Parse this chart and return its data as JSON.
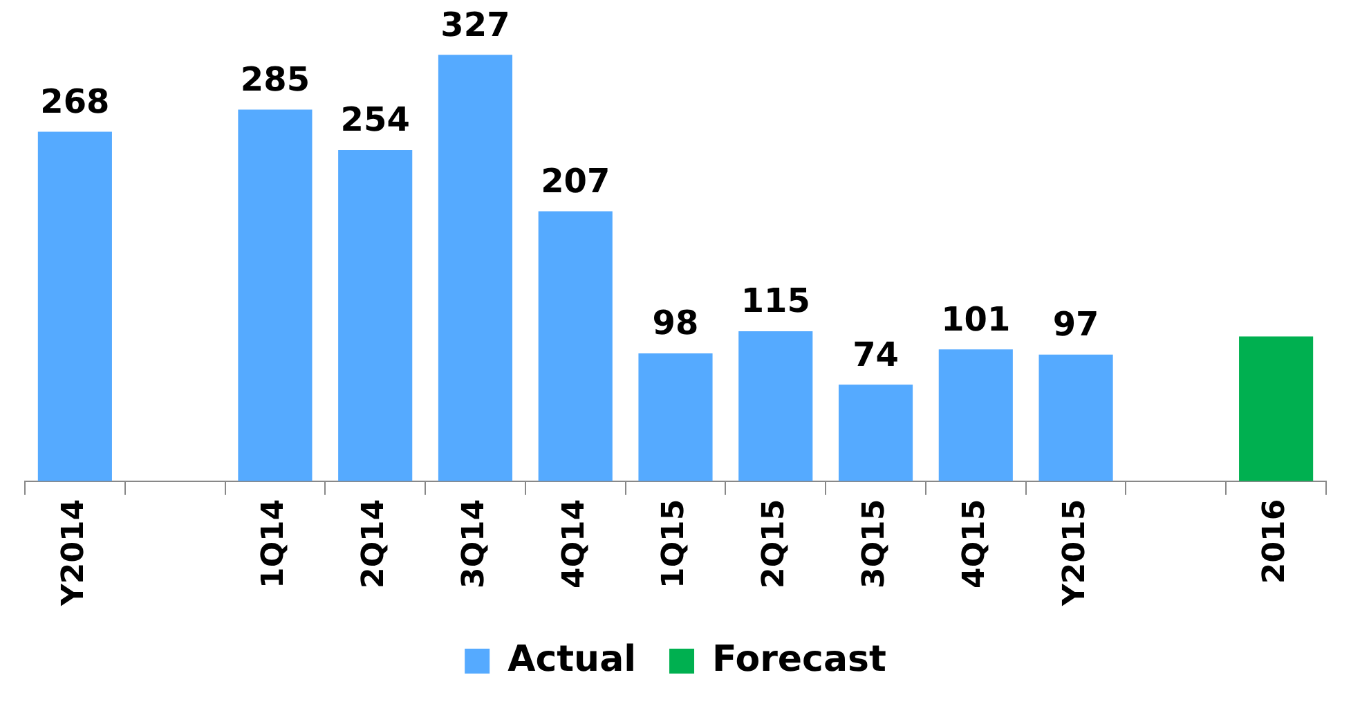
{
  "chart_data": {
    "type": "bar",
    "categories": [
      "Y2014",
      null,
      "1Q14",
      "2Q14",
      "3Q14",
      "4Q14",
      "1Q15",
      "2Q15",
      "3Q15",
      "4Q15",
      "Y2015",
      null,
      "2016"
    ],
    "series": [
      {
        "name": "Actual",
        "color": "#55aaff",
        "values": [
          268,
          null,
          285,
          254,
          327,
          207,
          98,
          115,
          74,
          101,
          97,
          null,
          null
        ],
        "value_labels": [
          "268",
          null,
          "285",
          "254",
          "327",
          "207",
          "98",
          "115",
          "74",
          "101",
          "97",
          null,
          null
        ]
      },
      {
        "name": "Forecast",
        "color": "#00b050",
        "values": [
          null,
          null,
          null,
          null,
          null,
          null,
          null,
          null,
          null,
          null,
          null,
          null,
          111
        ]
      }
    ],
    "legend": "bottom"
  }
}
